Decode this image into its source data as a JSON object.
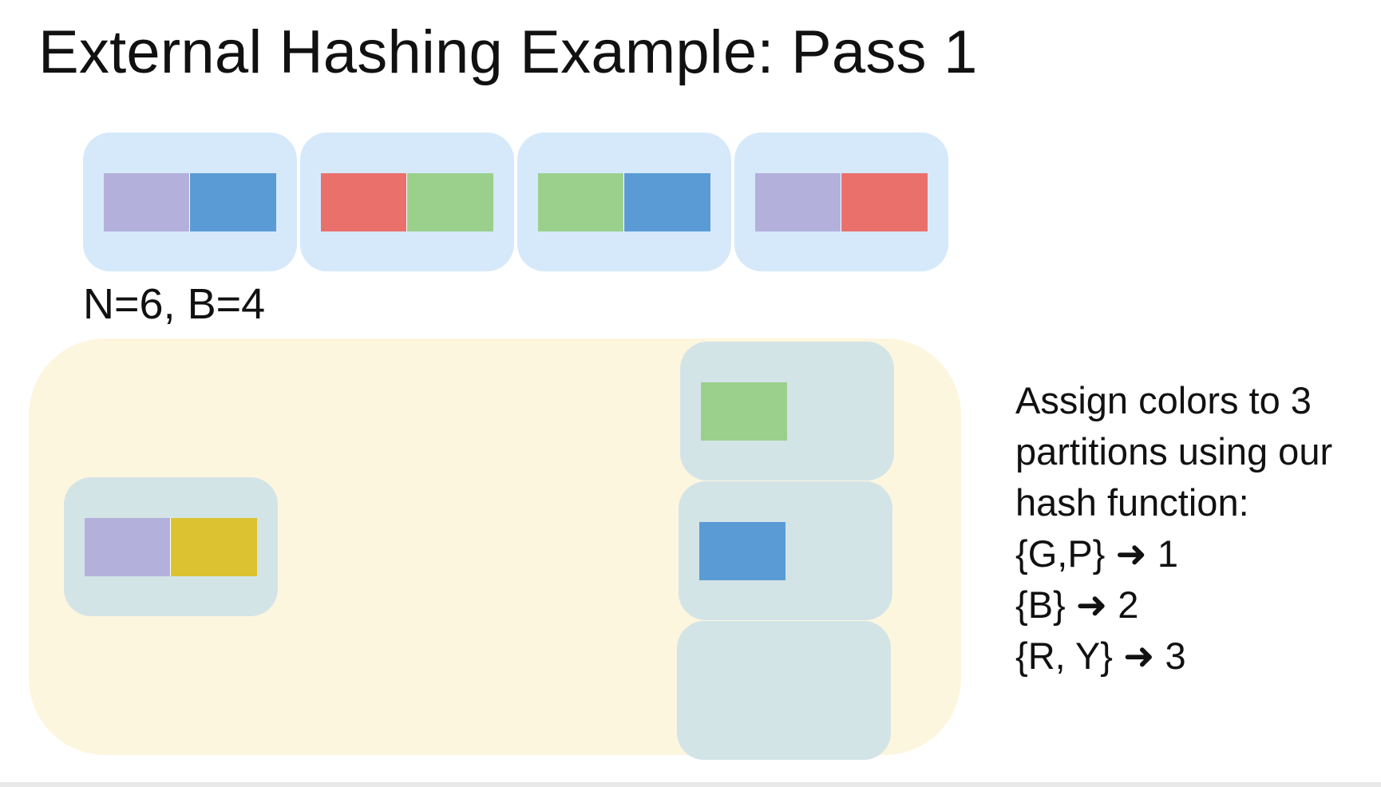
{
  "title": "External Hashing Example: Pass 1",
  "params": "N=6, B=4",
  "colors": {
    "purple": "#b4b0dc",
    "blue": "#5a9bd6",
    "red": "#ea706c",
    "green": "#9ad08c",
    "yellow": "#dcc231",
    "page_bg": "#d6e9fb",
    "buffer_page_bg": "#d3e4e7",
    "buffer_pool_bg": "#fdf6df"
  },
  "input_pages": [
    [
      "purple",
      "blue"
    ],
    [
      "red",
      "green"
    ],
    [
      "green",
      "blue"
    ],
    [
      "purple",
      "red"
    ]
  ],
  "input_buffer": [
    "purple",
    "yellow"
  ],
  "output_buffers": [
    [
      "green"
    ],
    [
      "blue"
    ],
    []
  ],
  "explanation": {
    "line1": "Assign colors to 3",
    "line2": "partitions  using our",
    "line3": "hash function:",
    "line4": "{G,P} ➜ 1",
    "line5": "{B} ➜ 2",
    "line6": "{R, Y} ➜ 3"
  }
}
